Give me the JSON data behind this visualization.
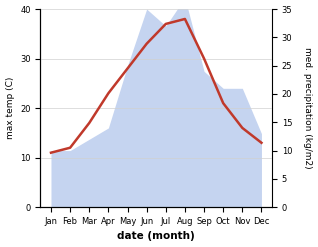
{
  "months": [
    "Jan",
    "Feb",
    "Mar",
    "Apr",
    "May",
    "Jun",
    "Jul",
    "Aug",
    "Sep",
    "Oct",
    "Nov",
    "Dec"
  ],
  "temperature": [
    11,
    12,
    17,
    23,
    28,
    33,
    37,
    38,
    30,
    21,
    16,
    13
  ],
  "precipitation": [
    10,
    10,
    12,
    14,
    25,
    35,
    32,
    37,
    24,
    21,
    21,
    13
  ],
  "temp_color": "#c0392b",
  "precip_color": "#c5d4f0",
  "left_ylim": [
    0,
    40
  ],
  "right_ylim": [
    0,
    35
  ],
  "left_yticks": [
    0,
    10,
    20,
    30,
    40
  ],
  "right_yticks": [
    0,
    5,
    10,
    15,
    20,
    25,
    30,
    35
  ],
  "xlabel": "date (month)",
  "ylabel_left": "max temp (C)",
  "ylabel_right": "med. precipitation (kg/m2)",
  "bg_color": "#ffffff",
  "grid_color": "#d0d0d0"
}
